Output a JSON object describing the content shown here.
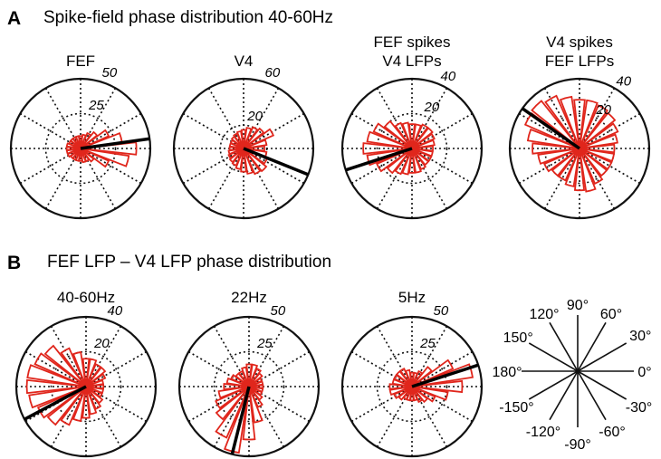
{
  "panels": {
    "A": {
      "letter": "A",
      "title": "Spike-field phase distribution 40-60Hz"
    },
    "B": {
      "letter": "B",
      "title": "FEF LFP – V4 LFP phase distribution"
    }
  },
  "colors": {
    "bars": "#e0261c",
    "axes": "#111111",
    "mean_vector": "#000000"
  },
  "chart_data": [
    {
      "type": "polar-histogram",
      "panel": "A",
      "title_lines": [
        "FEF"
      ],
      "rmax": 50,
      "rings": [
        25,
        50
      ],
      "ring_labels": [
        "25",
        "50"
      ],
      "bins": [
        {
          "angle": 0,
          "value": 40
        },
        {
          "angle": 15,
          "value": 30
        },
        {
          "angle": 30,
          "value": 22
        },
        {
          "angle": 45,
          "value": 15
        },
        {
          "angle": 60,
          "value": 12
        },
        {
          "angle": 75,
          "value": 10
        },
        {
          "angle": 90,
          "value": 9
        },
        {
          "angle": 105,
          "value": 9
        },
        {
          "angle": 120,
          "value": 9
        },
        {
          "angle": 135,
          "value": 9
        },
        {
          "angle": 150,
          "value": 9
        },
        {
          "angle": 165,
          "value": 10
        },
        {
          "angle": 180,
          "value": 10
        },
        {
          "angle": 195,
          "value": 10
        },
        {
          "angle": 210,
          "value": 10
        },
        {
          "angle": 225,
          "value": 9
        },
        {
          "angle": 240,
          "value": 9
        },
        {
          "angle": 255,
          "value": 9
        },
        {
          "angle": 270,
          "value": 9
        },
        {
          "angle": 285,
          "value": 10
        },
        {
          "angle": 300,
          "value": 10
        },
        {
          "angle": 315,
          "value": 12
        },
        {
          "angle": 330,
          "value": 22
        },
        {
          "angle": 345,
          "value": 35
        }
      ],
      "mean_angle": 8
    },
    {
      "type": "polar-histogram",
      "panel": "A",
      "title_lines": [
        "V4"
      ],
      "rmax": 60,
      "rings": [
        20,
        60
      ],
      "ring_labels": [
        "20",
        "60"
      ],
      "bins": [
        {
          "angle": 0,
          "value": 18
        },
        {
          "angle": 15,
          "value": 20
        },
        {
          "angle": 30,
          "value": 28
        },
        {
          "angle": 45,
          "value": 22
        },
        {
          "angle": 60,
          "value": 20
        },
        {
          "angle": 75,
          "value": 18
        },
        {
          "angle": 90,
          "value": 16
        },
        {
          "angle": 105,
          "value": 15
        },
        {
          "angle": 120,
          "value": 14
        },
        {
          "angle": 135,
          "value": 13
        },
        {
          "angle": 150,
          "value": 12
        },
        {
          "angle": 165,
          "value": 12
        },
        {
          "angle": 180,
          "value": 12
        },
        {
          "angle": 195,
          "value": 13
        },
        {
          "angle": 210,
          "value": 14
        },
        {
          "angle": 225,
          "value": 15
        },
        {
          "angle": 240,
          "value": 16
        },
        {
          "angle": 255,
          "value": 18
        },
        {
          "angle": 270,
          "value": 20
        },
        {
          "angle": 285,
          "value": 22
        },
        {
          "angle": 300,
          "value": 24
        },
        {
          "angle": 315,
          "value": 25
        },
        {
          "angle": 330,
          "value": 22
        },
        {
          "angle": 345,
          "value": 20
        }
      ],
      "mean_angle": -22
    },
    {
      "type": "polar-histogram",
      "panel": "A",
      "title_lines": [
        "FEF spikes",
        "V4 LFPs"
      ],
      "rmax": 40,
      "rings": [
        20,
        40
      ],
      "ring_labels": [
        "20",
        "40"
      ],
      "bins": [
        {
          "angle": 0,
          "value": 12
        },
        {
          "angle": 15,
          "value": 13
        },
        {
          "angle": 30,
          "value": 14
        },
        {
          "angle": 45,
          "value": 15
        },
        {
          "angle": 60,
          "value": 15
        },
        {
          "angle": 75,
          "value": 14
        },
        {
          "angle": 90,
          "value": 14
        },
        {
          "angle": 105,
          "value": 15
        },
        {
          "angle": 120,
          "value": 16
        },
        {
          "angle": 135,
          "value": 20
        },
        {
          "angle": 150,
          "value": 24
        },
        {
          "angle": 165,
          "value": 26
        },
        {
          "angle": 180,
          "value": 28
        },
        {
          "angle": 195,
          "value": 26
        },
        {
          "angle": 210,
          "value": 22
        },
        {
          "angle": 225,
          "value": 18
        },
        {
          "angle": 240,
          "value": 16
        },
        {
          "angle": 255,
          "value": 15
        },
        {
          "angle": 270,
          "value": 14
        },
        {
          "angle": 285,
          "value": 14
        },
        {
          "angle": 300,
          "value": 13
        },
        {
          "angle": 315,
          "value": 12
        },
        {
          "angle": 330,
          "value": 12
        },
        {
          "angle": 345,
          "value": 12
        }
      ],
      "mean_angle": 198
    },
    {
      "type": "polar-histogram",
      "panel": "A",
      "title_lines": [
        "V4 spikes",
        "FEF LFPs"
      ],
      "rmax": 40,
      "rings": [
        20,
        40
      ],
      "ring_labels": [
        "20",
        "40"
      ],
      "bins": [
        {
          "angle": 0,
          "value": 20
        },
        {
          "angle": 15,
          "value": 22
        },
        {
          "angle": 30,
          "value": 24
        },
        {
          "angle": 45,
          "value": 26
        },
        {
          "angle": 60,
          "value": 27
        },
        {
          "angle": 75,
          "value": 28
        },
        {
          "angle": 90,
          "value": 28
        },
        {
          "angle": 105,
          "value": 30
        },
        {
          "angle": 120,
          "value": 33
        },
        {
          "angle": 135,
          "value": 35
        },
        {
          "angle": 150,
          "value": 34
        },
        {
          "angle": 165,
          "value": 30
        },
        {
          "angle": 180,
          "value": 27
        },
        {
          "angle": 195,
          "value": 24
        },
        {
          "angle": 210,
          "value": 22
        },
        {
          "angle": 225,
          "value": 20
        },
        {
          "angle": 240,
          "value": 20
        },
        {
          "angle": 255,
          "value": 22
        },
        {
          "angle": 270,
          "value": 24
        },
        {
          "angle": 285,
          "value": 25
        },
        {
          "angle": 300,
          "value": 22
        },
        {
          "angle": 315,
          "value": 20
        },
        {
          "angle": 330,
          "value": 20
        },
        {
          "angle": 345,
          "value": 20
        }
      ],
      "mean_angle": 145
    },
    {
      "type": "polar-histogram",
      "panel": "B",
      "title_lines": [
        "40-60Hz"
      ],
      "rmax": 40,
      "rings": [
        20,
        40
      ],
      "ring_labels": [
        "20",
        "40"
      ],
      "bins": [
        {
          "angle": 0,
          "value": 10
        },
        {
          "angle": 15,
          "value": 10
        },
        {
          "angle": 30,
          "value": 12
        },
        {
          "angle": 45,
          "value": 14
        },
        {
          "angle": 60,
          "value": 14
        },
        {
          "angle": 75,
          "value": 16
        },
        {
          "angle": 90,
          "value": 16
        },
        {
          "angle": 105,
          "value": 20
        },
        {
          "angle": 120,
          "value": 24
        },
        {
          "angle": 135,
          "value": 30
        },
        {
          "angle": 150,
          "value": 32
        },
        {
          "angle": 165,
          "value": 34
        },
        {
          "angle": 180,
          "value": 34
        },
        {
          "angle": 195,
          "value": 33
        },
        {
          "angle": 210,
          "value": 30
        },
        {
          "angle": 225,
          "value": 28
        },
        {
          "angle": 240,
          "value": 24
        },
        {
          "angle": 255,
          "value": 20
        },
        {
          "angle": 270,
          "value": 18
        },
        {
          "angle": 285,
          "value": 16
        },
        {
          "angle": 300,
          "value": 14
        },
        {
          "angle": 315,
          "value": 12
        },
        {
          "angle": 330,
          "value": 10
        },
        {
          "angle": 345,
          "value": 10
        }
      ],
      "mean_angle": 208
    },
    {
      "type": "polar-histogram",
      "panel": "B",
      "title_lines": [
        "22Hz"
      ],
      "rmax": 50,
      "rings": [
        25,
        50
      ],
      "ring_labels": [
        "25",
        "50"
      ],
      "bins": [
        {
          "angle": 0,
          "value": 10
        },
        {
          "angle": 15,
          "value": 10
        },
        {
          "angle": 30,
          "value": 10
        },
        {
          "angle": 45,
          "value": 12
        },
        {
          "angle": 60,
          "value": 14
        },
        {
          "angle": 75,
          "value": 16
        },
        {
          "angle": 90,
          "value": 16
        },
        {
          "angle": 105,
          "value": 14
        },
        {
          "angle": 120,
          "value": 12
        },
        {
          "angle": 135,
          "value": 12
        },
        {
          "angle": 150,
          "value": 14
        },
        {
          "angle": 165,
          "value": 16
        },
        {
          "angle": 180,
          "value": 18
        },
        {
          "angle": 195,
          "value": 22
        },
        {
          "angle": 210,
          "value": 26
        },
        {
          "angle": 225,
          "value": 30
        },
        {
          "angle": 240,
          "value": 40
        },
        {
          "angle": 255,
          "value": 48
        },
        {
          "angle": 270,
          "value": 38
        },
        {
          "angle": 285,
          "value": 26
        },
        {
          "angle": 300,
          "value": 16
        },
        {
          "angle": 315,
          "value": 12
        },
        {
          "angle": 330,
          "value": 10
        },
        {
          "angle": 345,
          "value": 10
        }
      ],
      "mean_angle": 256
    },
    {
      "type": "polar-histogram",
      "panel": "B",
      "title_lines": [
        "5Hz"
      ],
      "rmax": 50,
      "rings": [
        25,
        50
      ],
      "ring_labels": [
        "25",
        "50"
      ],
      "bins": [
        {
          "angle": 0,
          "value": 36
        },
        {
          "angle": 15,
          "value": 44
        },
        {
          "angle": 30,
          "value": 32
        },
        {
          "angle": 45,
          "value": 18
        },
        {
          "angle": 60,
          "value": 12
        },
        {
          "angle": 75,
          "value": 10
        },
        {
          "angle": 90,
          "value": 10
        },
        {
          "angle": 105,
          "value": 12
        },
        {
          "angle": 120,
          "value": 14
        },
        {
          "angle": 135,
          "value": 14
        },
        {
          "angle": 150,
          "value": 14
        },
        {
          "angle": 165,
          "value": 14
        },
        {
          "angle": 180,
          "value": 16
        },
        {
          "angle": 195,
          "value": 16
        },
        {
          "angle": 210,
          "value": 14
        },
        {
          "angle": 225,
          "value": 12
        },
        {
          "angle": 240,
          "value": 10
        },
        {
          "angle": 255,
          "value": 10
        },
        {
          "angle": 270,
          "value": 10
        },
        {
          "angle": 285,
          "value": 10
        },
        {
          "angle": 300,
          "value": 12
        },
        {
          "angle": 315,
          "value": 14
        },
        {
          "angle": 330,
          "value": 18
        },
        {
          "angle": 345,
          "value": 26
        }
      ],
      "mean_angle": 18
    }
  ],
  "angle_key": {
    "spokes": [
      0,
      30,
      60,
      90,
      120,
      150,
      180,
      -150,
      -120,
      -90,
      -60,
      -30
    ],
    "labels": [
      {
        "angle": 90,
        "text": "90°"
      },
      {
        "angle": 120,
        "text": "120°"
      },
      {
        "angle": 60,
        "text": "60°"
      },
      {
        "angle": 150,
        "text": "150°"
      },
      {
        "angle": 30,
        "text": "30°"
      },
      {
        "angle": 180,
        "text": "180°"
      },
      {
        "angle": 0,
        "text": "0°"
      },
      {
        "angle": -150,
        "text": "-150°"
      },
      {
        "angle": -30,
        "text": "-30°"
      },
      {
        "angle": -120,
        "text": "-120°"
      },
      {
        "angle": -90,
        "text": "-90°"
      },
      {
        "angle": -60,
        "text": "-60°"
      }
    ]
  }
}
